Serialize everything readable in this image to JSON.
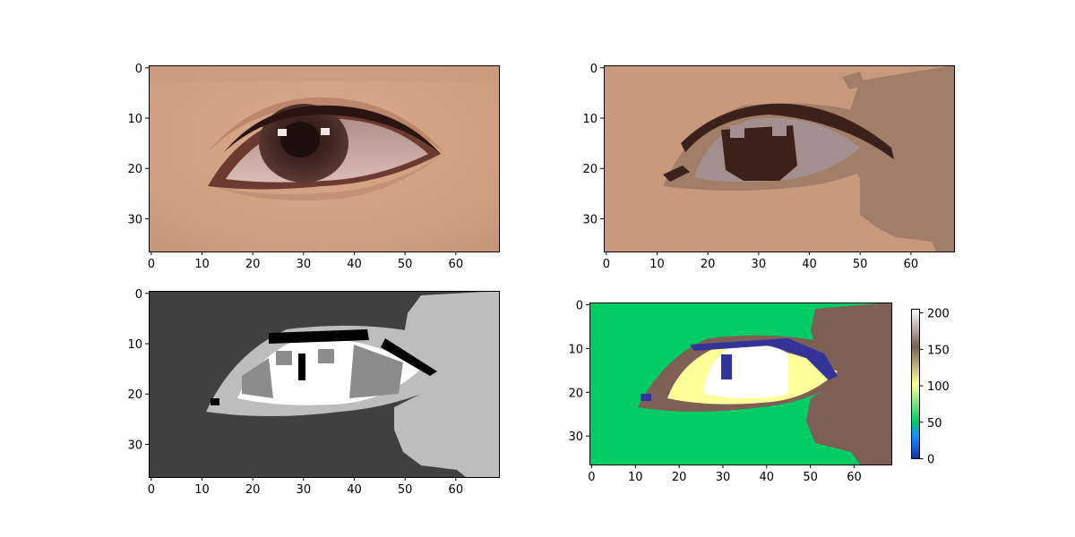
{
  "figure": {
    "panels": [
      {
        "id": "original",
        "kind": "photo",
        "x_ticks": [
          "0",
          "10",
          "20",
          "30",
          "40",
          "50",
          "60"
        ],
        "y_ticks": [
          "0",
          "10",
          "20",
          "30"
        ]
      },
      {
        "id": "quantized_color",
        "kind": "posterized",
        "x_ticks": [
          "0",
          "10",
          "20",
          "30",
          "40",
          "50",
          "60"
        ],
        "y_ticks": [
          "0",
          "10",
          "20",
          "30"
        ],
        "palette": [
          "#c79a7d",
          "#a27d68",
          "#a48f8f",
          "#3c211b",
          "#8a6f62"
        ]
      },
      {
        "id": "grayscale_labels",
        "kind": "grayscale",
        "x_ticks": [
          "0",
          "10",
          "20",
          "30",
          "40",
          "50",
          "60"
        ],
        "y_ticks": [
          "0",
          "10",
          "20",
          "30"
        ],
        "palette": [
          "#404040",
          "#bdbdbd",
          "#ffffff",
          "#8c8c8c",
          "#000000"
        ]
      },
      {
        "id": "terrain_colormap",
        "kind": "colormap",
        "x_ticks": [
          "0",
          "10",
          "20",
          "30",
          "40",
          "50",
          "60"
        ],
        "y_ticks": [
          "0",
          "10",
          "20",
          "30"
        ],
        "palette": [
          "#00cc66",
          "#7d5f55",
          "#ffff99",
          "#ffffff",
          "#333399"
        ],
        "colorbar": {
          "ticks": [
            "0",
            "50",
            "100",
            "150",
            "200"
          ],
          "range": [
            0,
            205
          ],
          "colormap": "terrain"
        }
      }
    ]
  }
}
